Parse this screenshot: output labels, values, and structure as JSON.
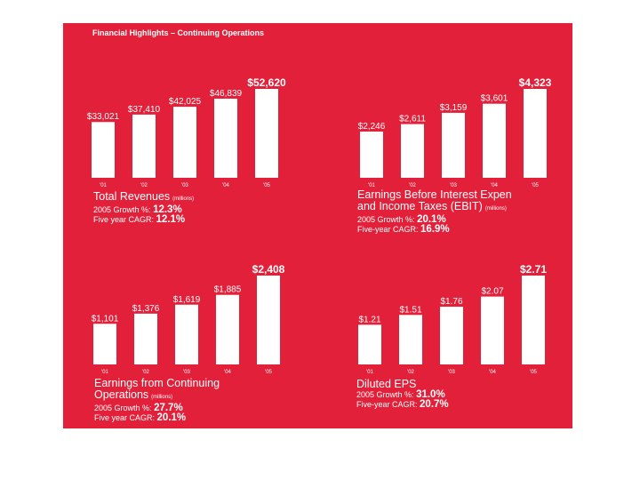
{
  "heading": "Financial Highlights – Continuing Operations",
  "colors": {
    "panel": "#e3203a",
    "bar": "#ffffff",
    "text": "#ffffff"
  },
  "chart_data": [
    {
      "id": "revenues",
      "type": "bar",
      "categories": [
        "'01",
        "'02",
        "'03",
        "'04",
        "'05"
      ],
      "values": [
        33021,
        37410,
        42025,
        46839,
        52620
      ],
      "data_labels": [
        "$33,021",
        "$37,410",
        "$42,025",
        "$46,839",
        "$52,620"
      ],
      "title": "Total Revenues",
      "unit": "(millions)",
      "stats": [
        {
          "label": "2005 Growth %:",
          "value": "12.3%"
        },
        {
          "label": "Five year CAGR:",
          "value": "12.1%"
        }
      ]
    },
    {
      "id": "ebit",
      "type": "bar",
      "categories": [
        "'01",
        "'02",
        "'03",
        "'04",
        "'05"
      ],
      "values": [
        2246,
        2611,
        3159,
        3601,
        4323
      ],
      "data_labels": [
        "$2,246",
        "$2,611",
        "$3,159",
        "$3,601",
        "$4,323"
      ],
      "title_line1": "Earnings Before Interest Expen",
      "title_line2": "and Income Taxes (EBIT)",
      "unit": "(millions)",
      "stats": [
        {
          "label": "2005 Growth %:",
          "value": "20.1%"
        },
        {
          "label": "Five-year CAGR:",
          "value": "16.9%"
        }
      ]
    },
    {
      "id": "earnings",
      "type": "bar",
      "categories": [
        "'01",
        "'02",
        "'03",
        "'04",
        "'05"
      ],
      "values": [
        1101,
        1376,
        1619,
        1885,
        2408
      ],
      "data_labels": [
        "$1,101",
        "$1,376",
        "$1,619",
        "$1,885",
        "$2,408"
      ],
      "title_line1": "Earnings from Continuing",
      "title_line2": "Operations",
      "unit": "(millions)",
      "stats": [
        {
          "label": "2005 Growth %:",
          "value": "27.7%"
        },
        {
          "label": "Five year CAGR:",
          "value": "20.1%"
        }
      ]
    },
    {
      "id": "eps",
      "type": "bar",
      "categories": [
        "'01",
        "'02",
        "'03",
        "'04",
        "'05"
      ],
      "values": [
        1.21,
        1.51,
        1.76,
        2.07,
        2.71
      ],
      "data_labels": [
        "$1.21",
        "$1.51",
        "$1.76",
        "$2.07",
        "$2.71"
      ],
      "title": "Diluted EPS",
      "stats": [
        {
          "label": "2005 Growth %:",
          "value": "31.0%"
        },
        {
          "label": "Five-year CAGR:",
          "value": "20.7%"
        }
      ]
    }
  ]
}
